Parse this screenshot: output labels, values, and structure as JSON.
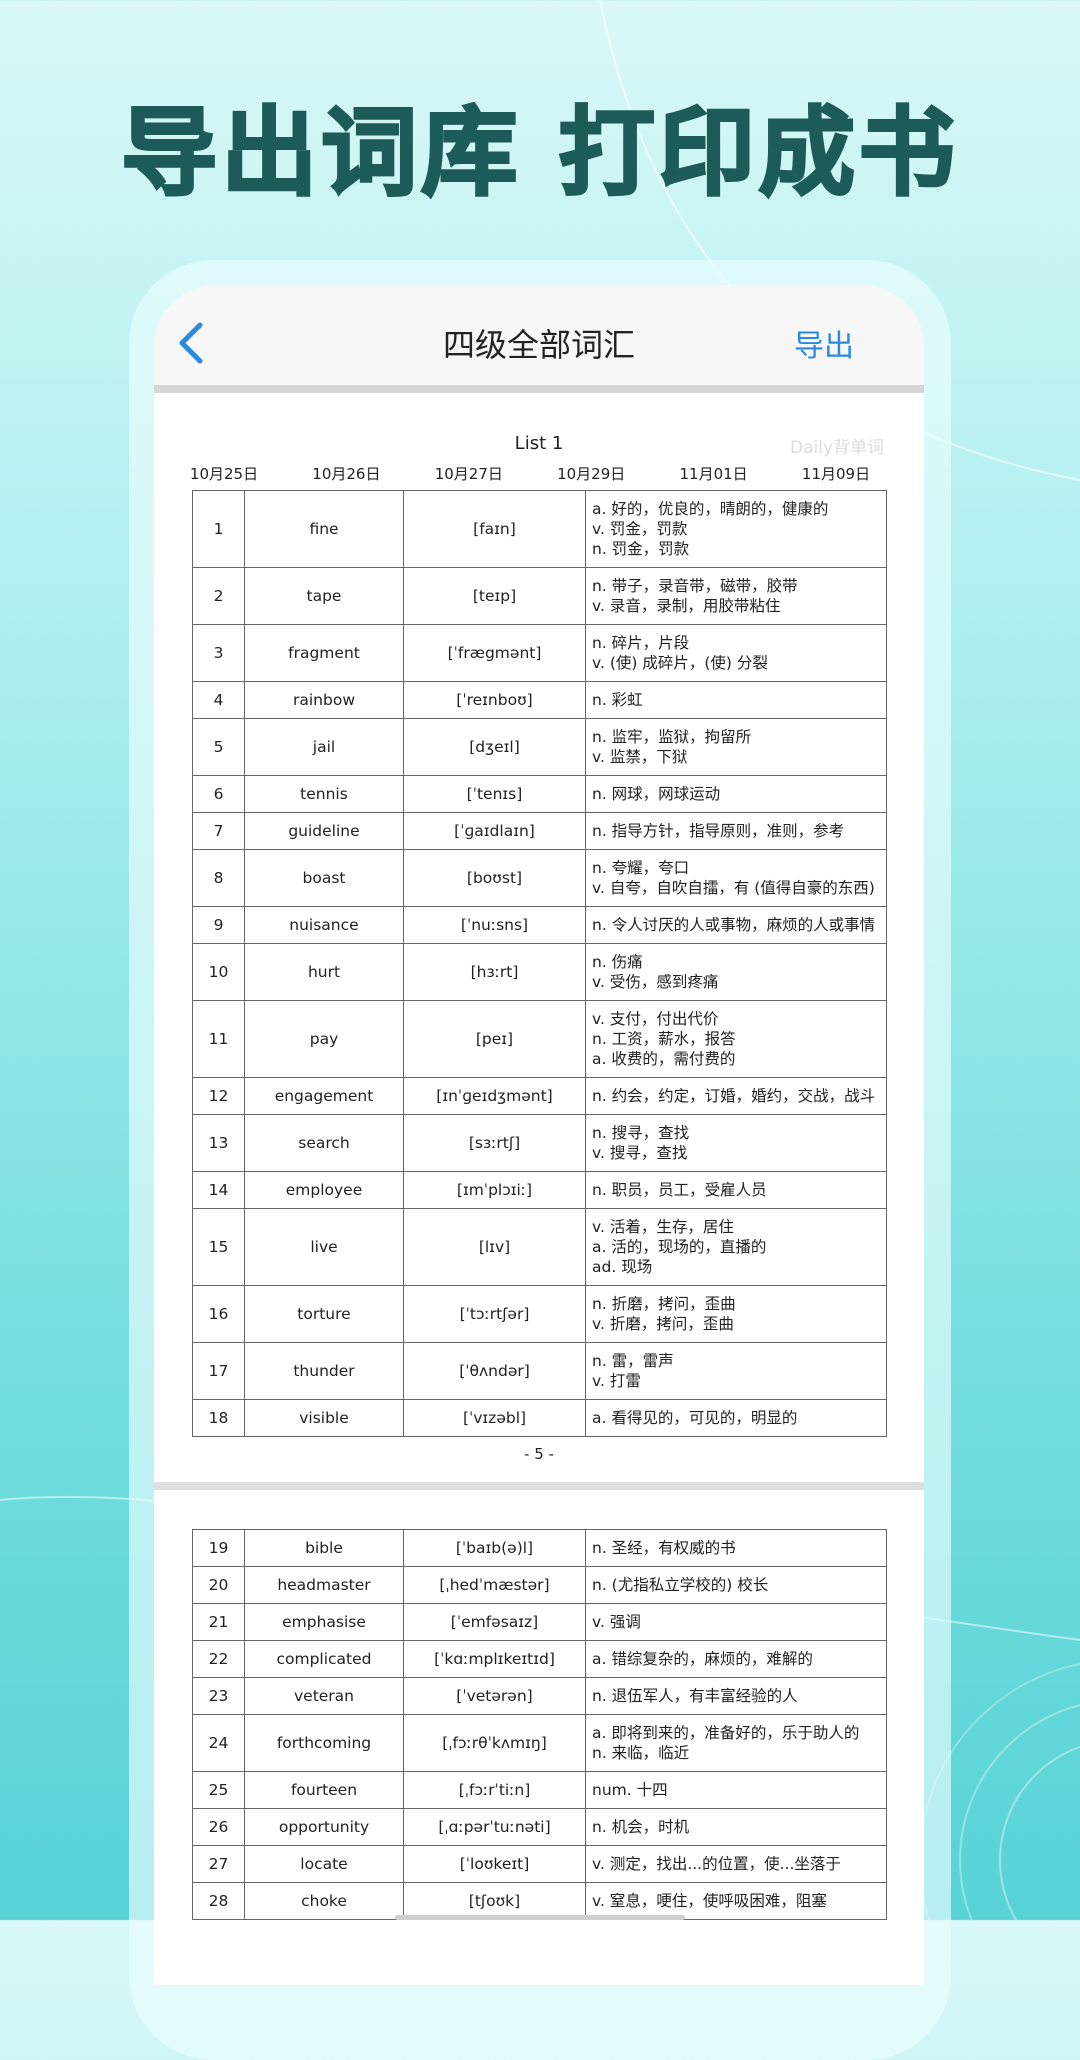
{
  "headline": "导出词库 打印成书",
  "nav": {
    "title": "四级全部词汇",
    "action": "导出"
  },
  "document": {
    "list_title": "List 1",
    "watermark": "Daily背单词",
    "dates": [
      "10月25日",
      "10月26日",
      "10月27日",
      "10月29日",
      "11月01日",
      "11月09日"
    ],
    "page_number": "- 5 -",
    "pages": [
      {
        "rows": [
          {
            "no": 1,
            "word": "fine",
            "phonetic": "[faɪn]",
            "meanings": [
              "a. 好的，优良的，晴朗的，健康的",
              "v. 罚金，罚款",
              "n. 罚金，罚款"
            ]
          },
          {
            "no": 2,
            "word": "tape",
            "phonetic": "[teɪp]",
            "meanings": [
              "n. 带子，录音带，磁带，胶带",
              "v. 录音，录制，用胶带粘住"
            ]
          },
          {
            "no": 3,
            "word": "fragment",
            "phonetic": "[ˈfrægmənt]",
            "meanings": [
              "n. 碎片，片段",
              "v. (使) 成碎片，(使) 分裂"
            ]
          },
          {
            "no": 4,
            "word": "rainbow",
            "phonetic": "[ˈreɪnboʊ]",
            "meanings": [
              "n. 彩虹"
            ]
          },
          {
            "no": 5,
            "word": "jail",
            "phonetic": "[dʒeɪl]",
            "meanings": [
              "n. 监牢，监狱，拘留所",
              "v. 监禁，下狱"
            ]
          },
          {
            "no": 6,
            "word": "tennis",
            "phonetic": "[ˈtenɪs]",
            "meanings": [
              "n. 网球，网球运动"
            ]
          },
          {
            "no": 7,
            "word": "guideline",
            "phonetic": "[ˈɡaɪdlaɪn]",
            "meanings": [
              "n. 指导方针，指导原则，准则，参考"
            ]
          },
          {
            "no": 8,
            "word": "boast",
            "phonetic": "[boʊst]",
            "meanings": [
              "n. 夸耀，夸口",
              "v. 自夸，自吹自擂，有 (值得自豪的东西)"
            ]
          },
          {
            "no": 9,
            "word": "nuisance",
            "phonetic": "[ˈnuːsns]",
            "meanings": [
              "n. 令人讨厌的人或事物，麻烦的人或事情"
            ]
          },
          {
            "no": 10,
            "word": "hurt",
            "phonetic": "[hɜːrt]",
            "meanings": [
              "n. 伤痛",
              "v. 受伤，感到疼痛"
            ]
          },
          {
            "no": 11,
            "word": "pay",
            "phonetic": "[peɪ]",
            "meanings": [
              "v. 支付，付出代价",
              "n. 工资，薪水，报答",
              "a. 收费的，需付费的"
            ]
          },
          {
            "no": 12,
            "word": "engagement",
            "phonetic": "[ɪnˈɡeɪdʒmənt]",
            "meanings": [
              "n. 约会，约定，订婚，婚约，交战，战斗"
            ]
          },
          {
            "no": 13,
            "word": "search",
            "phonetic": "[sɜːrtʃ]",
            "meanings": [
              "n. 搜寻，查找",
              "v. 搜寻，查找"
            ]
          },
          {
            "no": 14,
            "word": "employee",
            "phonetic": "[ɪmˈplɔɪiː]",
            "meanings": [
              "n. 职员，员工，受雇人员"
            ]
          },
          {
            "no": 15,
            "word": "live",
            "phonetic": "[lɪv]",
            "meanings": [
              "v. 活着，生存，居住",
              "a. 活的，现场的，直播的",
              "ad. 现场"
            ]
          },
          {
            "no": 16,
            "word": "torture",
            "phonetic": "[ˈtɔːrtʃər]",
            "meanings": [
              "n. 折磨，拷问，歪曲",
              "v. 折磨，拷问，歪曲"
            ]
          },
          {
            "no": 17,
            "word": "thunder",
            "phonetic": "[ˈθʌndər]",
            "meanings": [
              "n. 雷，雷声",
              "v. 打雷"
            ]
          },
          {
            "no": 18,
            "word": "visible",
            "phonetic": "[ˈvɪzəbl]",
            "meanings": [
              "a. 看得见的，可见的，明显的"
            ]
          }
        ]
      },
      {
        "rows": [
          {
            "no": 19,
            "word": "bible",
            "phonetic": "[ˈbaɪb(ə)l]",
            "meanings": [
              "n. 圣经，有权威的书"
            ]
          },
          {
            "no": 20,
            "word": "headmaster",
            "phonetic": "[ˌhedˈmæstər]",
            "meanings": [
              "n. (尤指私立学校的) 校长"
            ]
          },
          {
            "no": 21,
            "word": "emphasise",
            "phonetic": "[ˈemfəsaɪz]",
            "meanings": [
              "v. 强调"
            ]
          },
          {
            "no": 22,
            "word": "complicated",
            "phonetic": "[ˈkɑːmplɪkeɪtɪd]",
            "meanings": [
              "a. 错综复杂的，麻烦的，难解的"
            ]
          },
          {
            "no": 23,
            "word": "veteran",
            "phonetic": "[ˈvetərən]",
            "meanings": [
              "n. 退伍军人，有丰富经验的人"
            ]
          },
          {
            "no": 24,
            "word": "forthcoming",
            "phonetic": "[ˌfɔːrθˈkʌmɪŋ]",
            "meanings": [
              "a. 即将到来的，准备好的，乐于助人的",
              "n. 来临，临近"
            ]
          },
          {
            "no": 25,
            "word": "fourteen",
            "phonetic": "[ˌfɔːrˈtiːn]",
            "meanings": [
              "num. 十四"
            ]
          },
          {
            "no": 26,
            "word": "opportunity",
            "phonetic": "[ˌɑːpərˈtuːnəti]",
            "meanings": [
              "n. 机会，时机"
            ]
          },
          {
            "no": 27,
            "word": "locate",
            "phonetic": "[ˈloʊkeɪt]",
            "meanings": [
              "v. 测定，找出...的位置，使...坐落于"
            ]
          },
          {
            "no": 28,
            "word": "choke",
            "phonetic": "[tʃoʊk]",
            "meanings": [
              "v. 窒息，哽住，使呼吸困难，阻塞"
            ]
          }
        ]
      }
    ]
  }
}
